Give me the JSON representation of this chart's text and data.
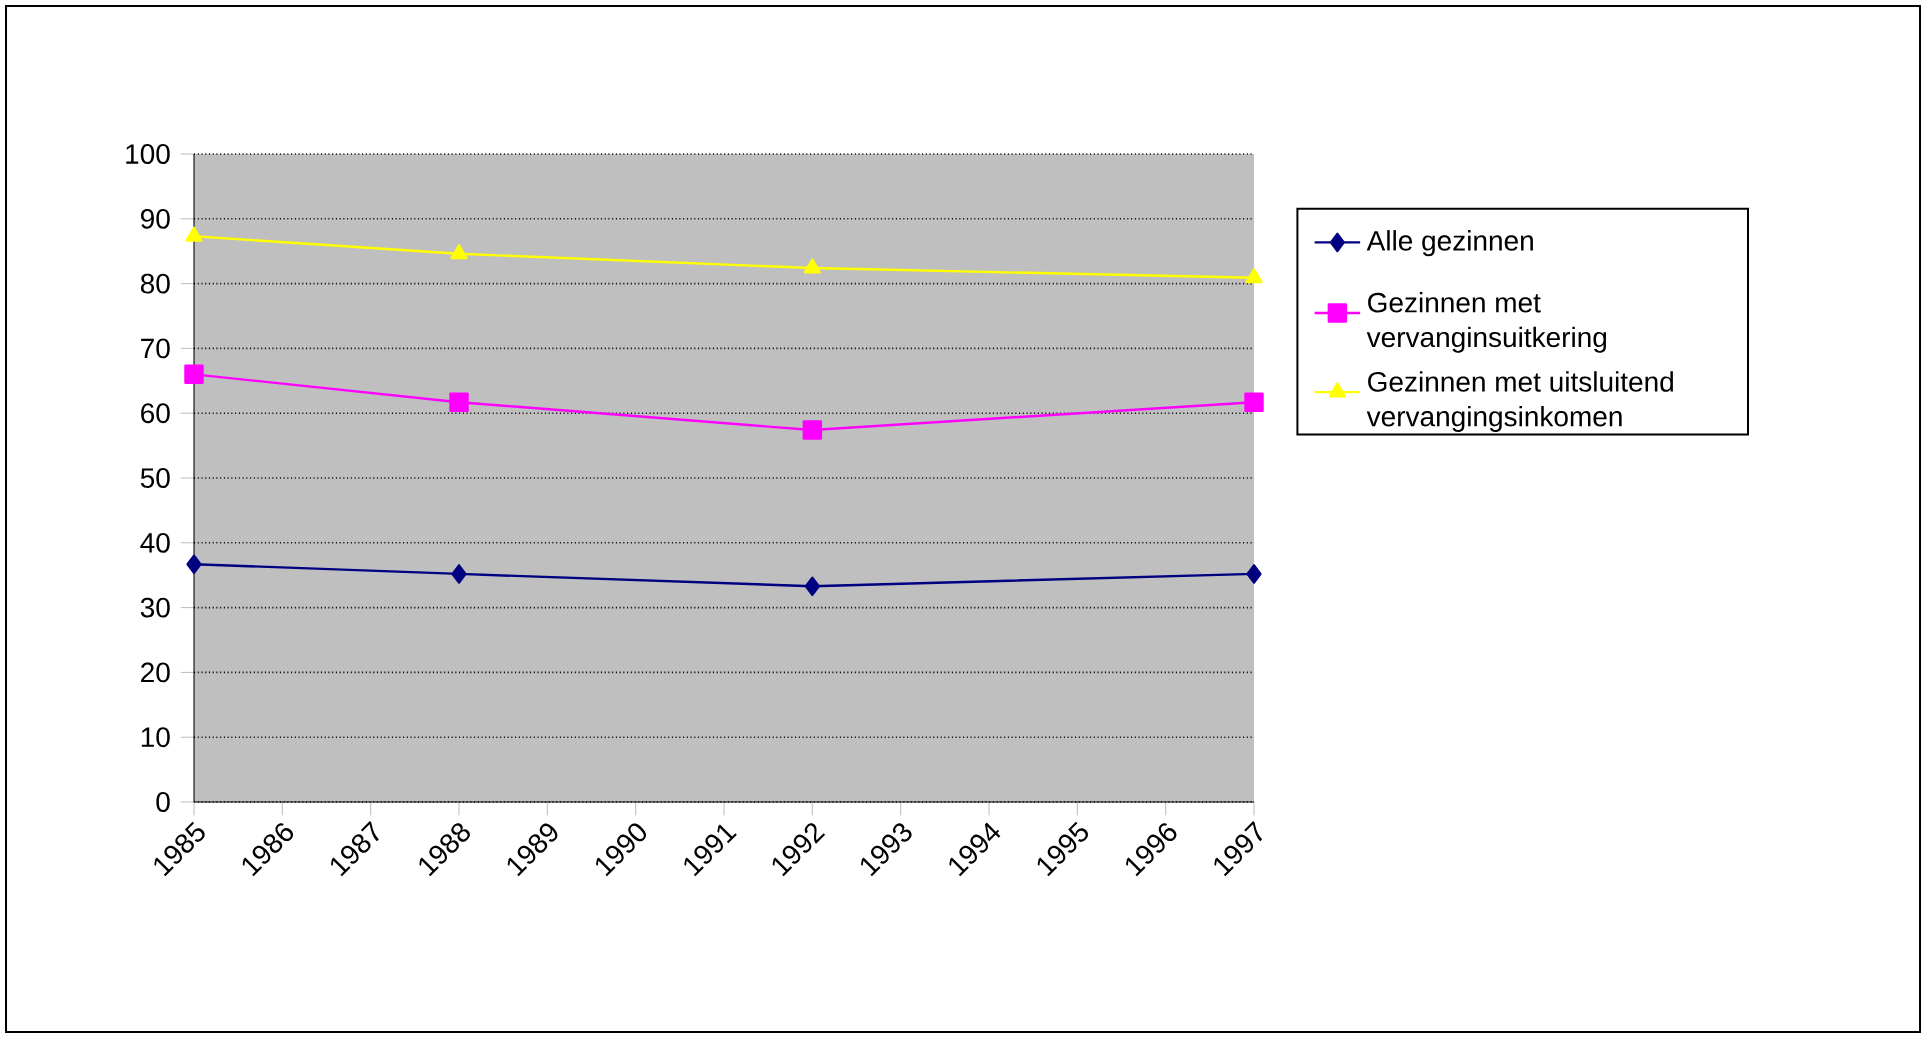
{
  "chart_data": {
    "type": "line",
    "xlim": [
      1985,
      1997
    ],
    "xticks": [
      1985,
      1986,
      1987,
      1988,
      1989,
      1990,
      1991,
      1992,
      1993,
      1994,
      1995,
      1996,
      1997
    ],
    "ylim": [
      0,
      100
    ],
    "yticks": [
      0,
      10,
      20,
      30,
      40,
      50,
      60,
      70,
      80,
      90,
      100
    ],
    "grid": "y",
    "legend": "right",
    "line_style": "solid",
    "series": [
      {
        "name": "Alle gezinnen",
        "color": "#000080",
        "marker": "diamond",
        "x": [
          1985,
          1988,
          1992,
          1997
        ],
        "values": [
          36.7,
          35.2,
          33.3,
          35.2
        ]
      },
      {
        "name": "Gezinnen met vervanginsuitkering",
        "color": "#ff00ff",
        "marker": "square",
        "x": [
          1985,
          1988,
          1992,
          1997
        ],
        "values": [
          66.0,
          61.7,
          57.4,
          61.7
        ]
      },
      {
        "name": "Gezinnen met uitsluitend vervangingsinkomen",
        "color": "#ffff00",
        "marker": "triangle",
        "x": [
          1985,
          1988,
          1992,
          1997
        ],
        "values": [
          87.3,
          84.6,
          82.4,
          80.9
        ]
      }
    ]
  }
}
